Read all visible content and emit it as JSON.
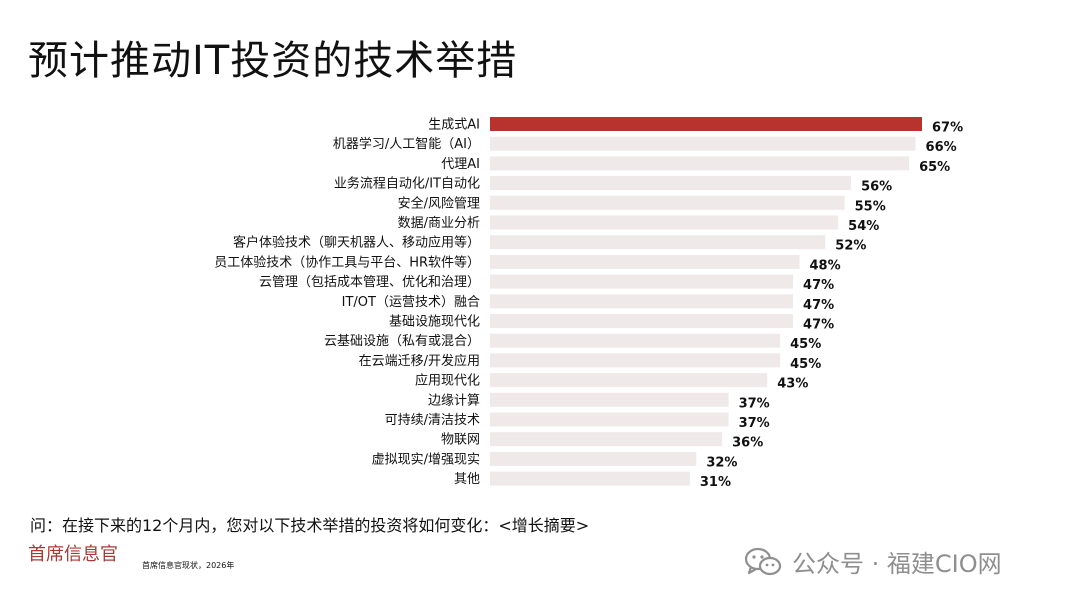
{
  "title": "预计推动IT投资的技术举措",
  "chart_data": {
    "type": "bar",
    "orientation": "horizontal",
    "categories": [
      "生成式AI",
      "机器学习/人工智能（AI）",
      "代理AI",
      "业务流程自动化/IT自动化",
      "安全/风险管理",
      "数据/商业分析",
      "客户体验技术（聊天机器人、移动应用等）",
      "员工体验技术（协作工具与平台、HR软件等）",
      "云管理（包括成本管理、优化和治理）",
      "IT/OT（运营技术）融合",
      "基础设施现代化",
      "云基础设施（私有或混合）",
      "在云端迁移/开发应用",
      "应用现代化",
      "边缘计算",
      "可持续/清洁技术",
      "物联网",
      "虚拟现实/增强现实",
      "其他"
    ],
    "values": [
      67,
      66,
      65,
      56,
      55,
      54,
      52,
      48,
      47,
      47,
      47,
      45,
      45,
      43,
      37,
      37,
      36,
      32,
      31
    ],
    "value_labels": [
      "67%",
      "66%",
      "65%",
      "56%",
      "55%",
      "54%",
      "52%",
      "48%",
      "47%",
      "47%",
      "47%",
      "45%",
      "45%",
      "43%",
      "37%",
      "37%",
      "36%",
      "32%",
      "31%"
    ],
    "unit": "%",
    "highlight_index": 0,
    "colors": {
      "highlight": "#b8332e",
      "bar": "#efe9e9"
    },
    "xlim": [
      0,
      67
    ],
    "grid": false,
    "legend": "none"
  },
  "question": "问：在接下来的12个月内，您对以下技术举措的投资将如何变化：<增长摘要>",
  "brand": "首席信息官",
  "source": "首席信息官现状，2026年",
  "watermark": {
    "icon": "wechat-icon",
    "text": "公众号 · 福建CIO网"
  }
}
